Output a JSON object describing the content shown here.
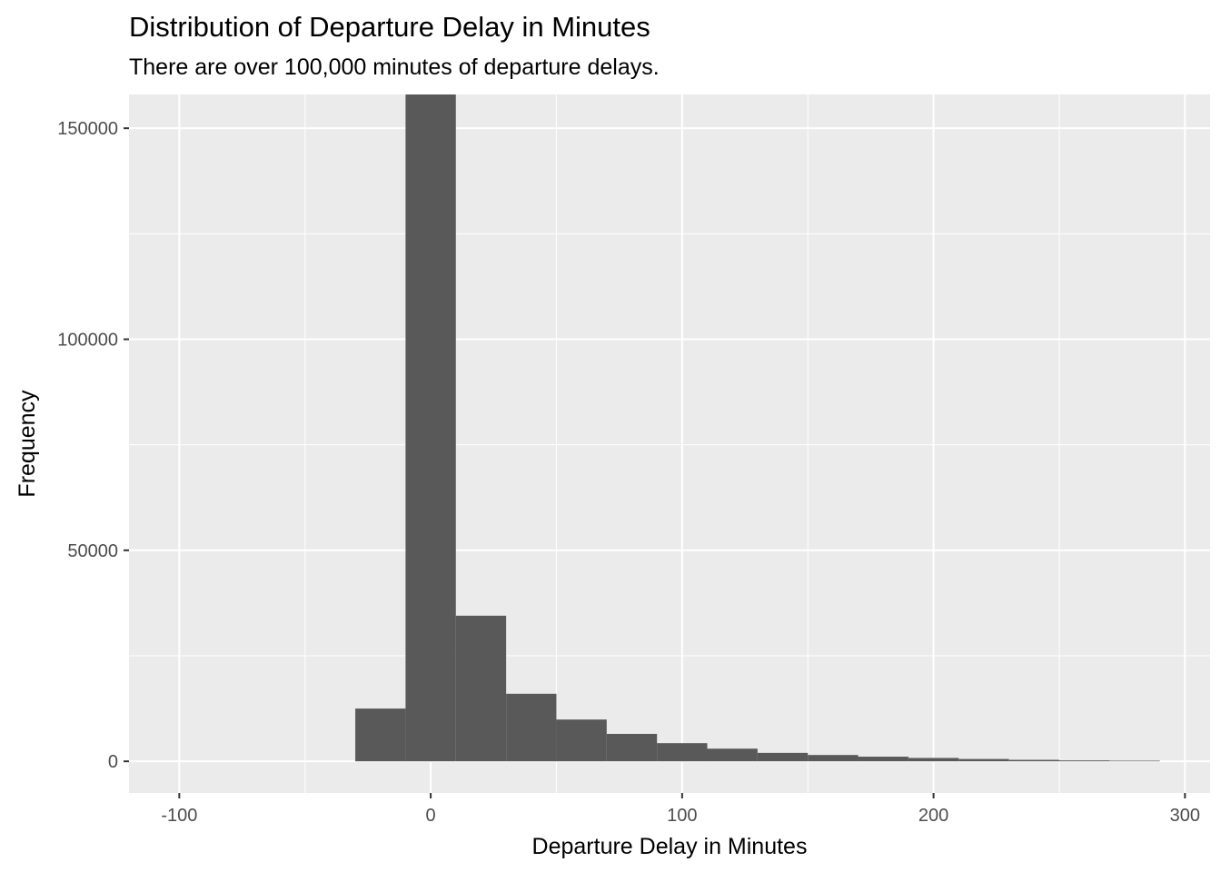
{
  "chart_data": {
    "type": "bar",
    "title": "Distribution of Departure Delay in Minutes",
    "subtitle": "There are over 100,000 minutes of departure delays.",
    "xlabel": "Departure Delay in Minutes",
    "ylabel": "Frequency",
    "xlim": [
      -120,
      310
    ],
    "ylim": [
      -7500,
      158000
    ],
    "x_ticks": [
      -100,
      0,
      100,
      200,
      300
    ],
    "y_ticks": [
      0,
      50000,
      100000,
      150000
    ],
    "x_tick_labels": [
      "-100",
      "0",
      "100",
      "200",
      "300"
    ],
    "y_tick_labels": [
      "0",
      "50000",
      "100000",
      "150000"
    ],
    "grid": true,
    "bin_width": 20,
    "bins": [
      {
        "x0": -30,
        "x1": -10,
        "value": 12500
      },
      {
        "x0": -10,
        "x1": 10,
        "value": 158000
      },
      {
        "x0": 10,
        "x1": 30,
        "value": 34500
      },
      {
        "x0": 30,
        "x1": 50,
        "value": 16000
      },
      {
        "x0": 50,
        "x1": 70,
        "value": 9900
      },
      {
        "x0": 70,
        "x1": 90,
        "value": 6500
      },
      {
        "x0": 90,
        "x1": 110,
        "value": 4300
      },
      {
        "x0": 110,
        "x1": 130,
        "value": 3000
      },
      {
        "x0": 130,
        "x1": 150,
        "value": 2000
      },
      {
        "x0": 150,
        "x1": 170,
        "value": 1500
      },
      {
        "x0": 170,
        "x1": 190,
        "value": 1100
      },
      {
        "x0": 190,
        "x1": 210,
        "value": 800
      },
      {
        "x0": 210,
        "x1": 230,
        "value": 550
      },
      {
        "x0": 230,
        "x1": 250,
        "value": 350
      },
      {
        "x0": 250,
        "x1": 270,
        "value": 220
      },
      {
        "x0": 270,
        "x1": 290,
        "value": 150
      }
    ],
    "colors": {
      "panel": "#ebebeb",
      "grid": "#ffffff",
      "bar": "#595959"
    }
  }
}
